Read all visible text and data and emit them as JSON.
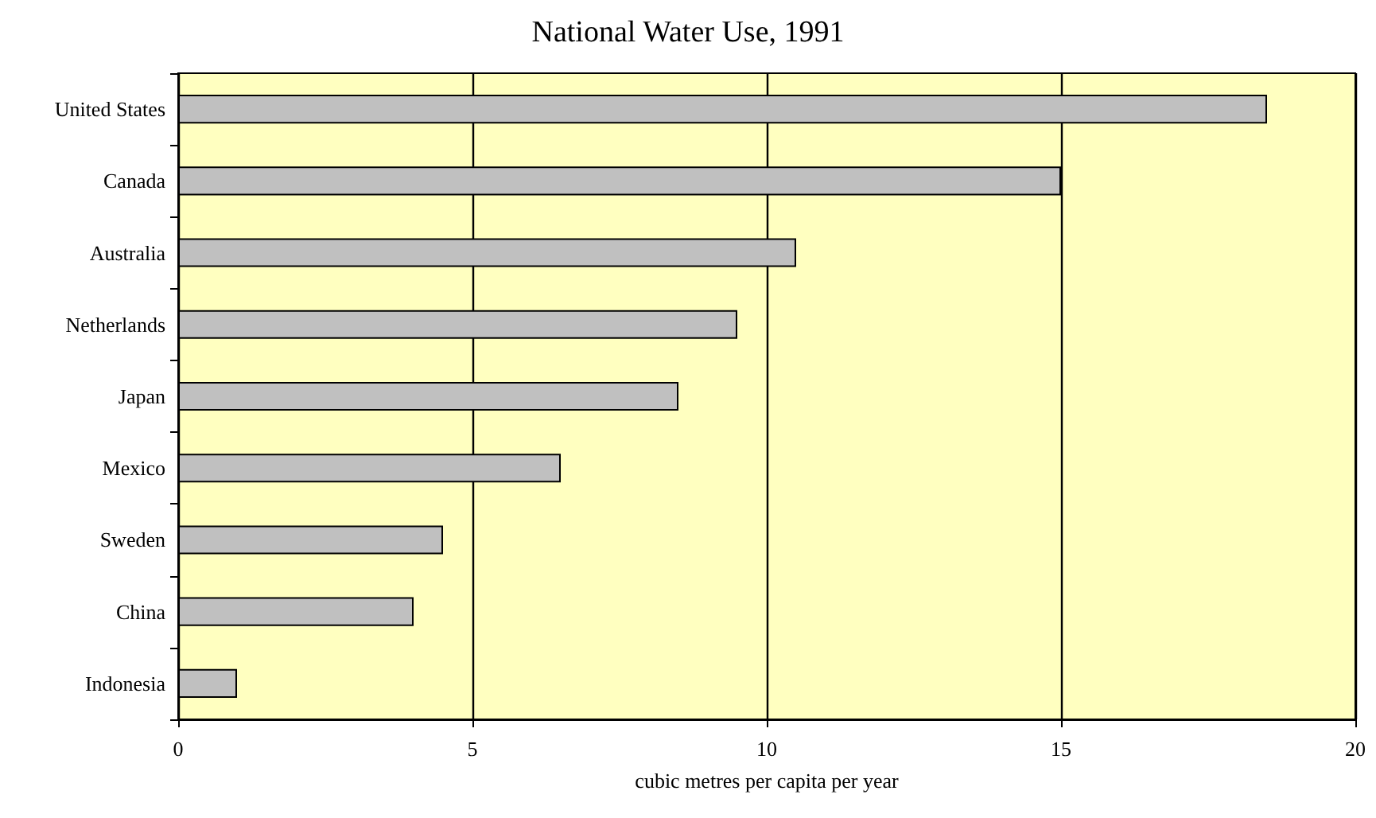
{
  "chart_data": {
    "type": "bar",
    "orientation": "horizontal",
    "title": "National Water Use, 1991",
    "xlabel": "cubic metres per capita per year",
    "categories": [
      "United States",
      "Canada",
      "Australia",
      "Netherlands",
      "Japan",
      "Mexico",
      "Sweden",
      "China",
      "Indonesia"
    ],
    "values": [
      18.5,
      15,
      10.5,
      9.5,
      8.5,
      6.5,
      4.5,
      4,
      1
    ],
    "color": "#c0c0c0",
    "xlim": [
      0,
      20
    ],
    "xticks": [
      0,
      5,
      10,
      15,
      20
    ],
    "grid": "x"
  }
}
